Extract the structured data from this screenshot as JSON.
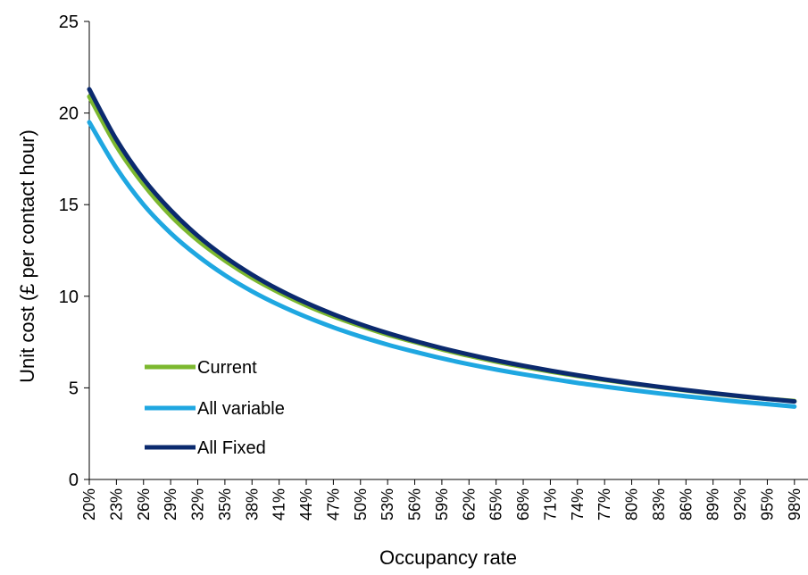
{
  "chart_data": {
    "type": "line",
    "title": "",
    "xlabel": "Occupancy rate",
    "ylabel": "Unit cost (£ per contact hour)",
    "ylim": [
      0,
      25
    ],
    "yticks": [
      "0",
      "5",
      "10",
      "15",
      "20",
      "25"
    ],
    "x_categories": [
      "20%",
      "23%",
      "26%",
      "29%",
      "32%",
      "35%",
      "38%",
      "41%",
      "44%",
      "47%",
      "50%",
      "53%",
      "56%",
      "59%",
      "62%",
      "65%",
      "68%",
      "71%",
      "74%",
      "77%",
      "80%",
      "83%",
      "86%",
      "89%",
      "92%",
      "95%",
      "98%"
    ],
    "x": [
      0.2,
      0.23,
      0.26,
      0.29,
      0.32,
      0.35,
      0.38,
      0.41,
      0.44,
      0.47,
      0.5,
      0.53,
      0.56,
      0.59,
      0.62,
      0.65,
      0.68,
      0.71,
      0.74,
      0.77,
      0.8,
      0.83,
      0.86,
      0.89,
      0.92,
      0.95,
      0.98
    ],
    "x_range": [
      0.2,
      0.995
    ],
    "grid": false,
    "legend_position": "lower-left",
    "series": [
      {
        "name": "Current",
        "color": "#7cb82f",
        "values": [
          20.9,
          18.2,
          16.1,
          14.4,
          13.05,
          11.95,
          11.0,
          10.2,
          9.5,
          8.9,
          8.38,
          7.9,
          7.5,
          7.1,
          6.75,
          6.43,
          6.15,
          5.89,
          5.65,
          5.43,
          5.23,
          5.04,
          4.86,
          4.69,
          4.53,
          4.4,
          4.28
        ]
      },
      {
        "name": "All variable",
        "color": "#1fa7e1",
        "values": [
          19.5,
          17.0,
          15.0,
          13.45,
          12.2,
          11.15,
          10.27,
          9.52,
          8.87,
          8.3,
          7.8,
          7.36,
          6.97,
          6.61,
          6.29,
          6.0,
          5.74,
          5.5,
          5.27,
          5.07,
          4.88,
          4.7,
          4.54,
          4.39,
          4.24,
          4.11,
          3.98
        ]
      },
      {
        "name": "All Fixed",
        "color": "#0b2a6e",
        "values": [
          21.3,
          18.55,
          16.4,
          14.7,
          13.3,
          12.15,
          11.18,
          10.35,
          9.64,
          9.02,
          8.47,
          7.99,
          7.56,
          7.17,
          6.82,
          6.5,
          6.21,
          5.94,
          5.69,
          5.46,
          5.25,
          5.06,
          4.88,
          4.71,
          4.55,
          4.4,
          4.26
        ]
      }
    ]
  }
}
